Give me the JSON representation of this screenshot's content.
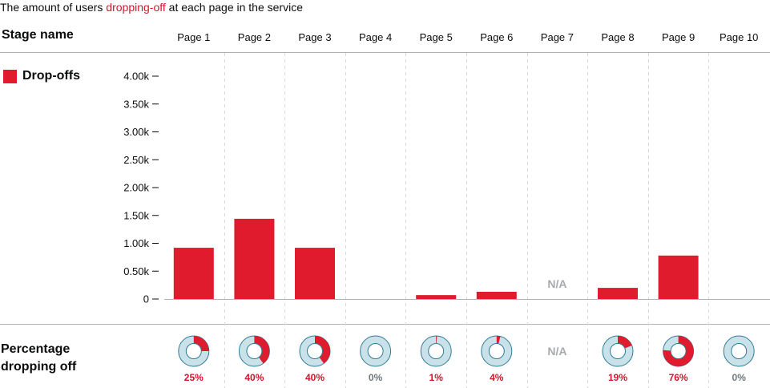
{
  "caption": {
    "before": "The amount of users ",
    "highlight": "dropping-off",
    "after": " at each page in the service"
  },
  "stage_name_label": "Stage name",
  "percentage_label_line1": "Percentage",
  "percentage_label_line2": "dropping off",
  "colors": {
    "bar": "#e01b2e",
    "pct_text": "#d4152c",
    "zero_text": "#6f777b",
    "na_text": "#a8abad",
    "donut_bg": "#c9e2ea",
    "donut_stroke": "#2e7c96"
  },
  "chart_data": {
    "type": "bar",
    "categories": [
      "Page 1",
      "Page 2",
      "Page 3",
      "Page 4",
      "Page 5",
      "Page 6",
      "Page 7",
      "Page 8",
      "Page 9",
      "Page 10"
    ],
    "series": [
      {
        "name": "Drop-offs",
        "values": [
          920,
          1440,
          920,
          0,
          70,
          130,
          null,
          200,
          780,
          0
        ]
      }
    ],
    "ylim": [
      0,
      4000
    ],
    "yticks": [
      0,
      500,
      1000,
      1500,
      2000,
      2500,
      3000,
      3500,
      4000
    ],
    "ytick_labels": [
      "0",
      "0.50k",
      "1.00k",
      "1.50k",
      "2.00k",
      "2.50k",
      "3.00k",
      "3.50k",
      "4.00k"
    ],
    "percentages": [
      25,
      40,
      40,
      0,
      1,
      4,
      null,
      19,
      76,
      0
    ],
    "percentage_labels": [
      "25%",
      "40%",
      "40%",
      "0%",
      "1%",
      "4%",
      "",
      "19%",
      "76%",
      "0%"
    ],
    "na_label": "N/A",
    "legend_position": "top-left",
    "grid": "vertical-dashed"
  }
}
